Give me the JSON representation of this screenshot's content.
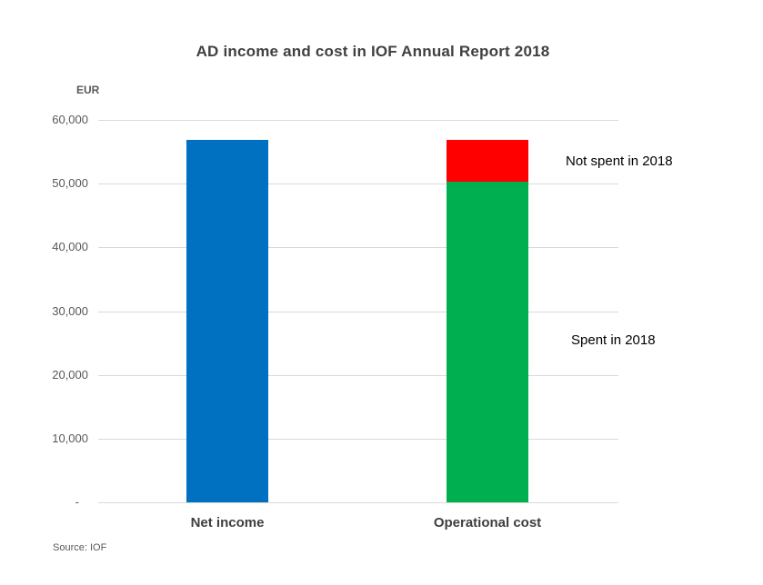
{
  "title": "AD income and cost in IOF Annual Report 2018",
  "y_axis_unit": "EUR",
  "source": "Source: IOF",
  "annotations": {
    "not_spent": "Not spent in 2018",
    "spent": "Spent in 2018"
  },
  "colors": {
    "net_income_bar": "#0070C0",
    "spent_bar": "#00B050",
    "not_spent_bar": "#FF0000",
    "gridline": "#D9D9D9",
    "title_text": "#404040",
    "axis_text": "#595959",
    "annotation_text": "#000000"
  },
  "chart_data": {
    "type": "bar",
    "stacked": true,
    "title": "AD income and cost in IOF Annual Report 2018",
    "xlabel": "",
    "ylabel": "EUR",
    "ylim": [
      0,
      60000
    ],
    "grid": true,
    "legend": false,
    "categories": [
      "Net income",
      "Operational cost"
    ],
    "yticks": [
      {
        "value": 60000,
        "label": "60,000"
      },
      {
        "value": 50000,
        "label": "50,000"
      },
      {
        "value": 40000,
        "label": "40,000"
      },
      {
        "value": 30000,
        "label": "30,000"
      },
      {
        "value": 20000,
        "label": "20,000"
      },
      {
        "value": 10000,
        "label": "10,000"
      },
      {
        "value": 0,
        "label": "-"
      }
    ],
    "bars": [
      {
        "category": "Net income",
        "total": 56800,
        "segments": [
          {
            "name": "Net income",
            "value": 56800,
            "color": "#0070C0"
          }
        ]
      },
      {
        "category": "Operational cost",
        "total": 56800,
        "segments": [
          {
            "name": "Spent in 2018",
            "value": 50300,
            "color": "#00B050"
          },
          {
            "name": "Not spent in 2018",
            "value": 6500,
            "color": "#FF0000"
          }
        ]
      }
    ]
  }
}
